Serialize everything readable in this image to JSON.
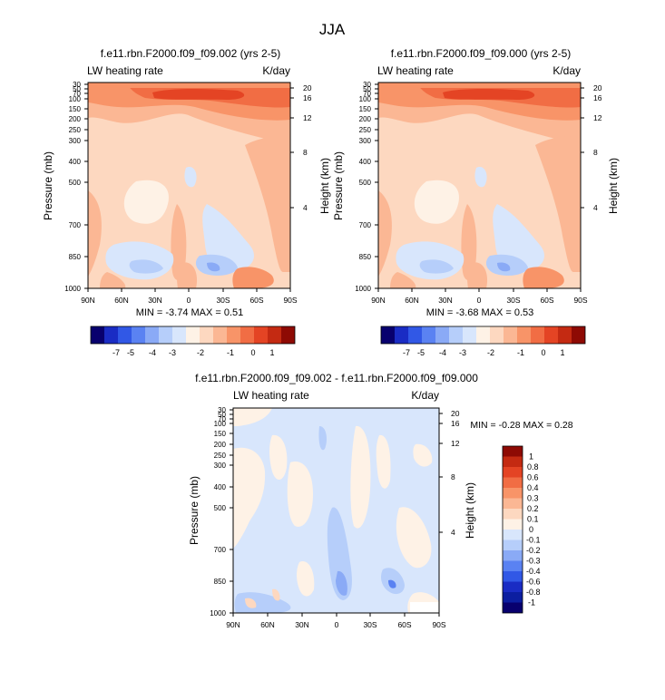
{
  "figure": {
    "title": "JJA"
  },
  "panels": [
    {
      "key": "p1",
      "title": "f.e11.rbn.F2000.f09_f09.002 (yrs 2-5)",
      "left_label": "LW heating rate",
      "right_label": "K/day",
      "stats": "MIN =  -3.74  MAX =   0.51",
      "ylabel": "Pressure (mb)",
      "ylabel_right": "Height (km)"
    },
    {
      "key": "p2",
      "title": "f.e11.rbn.F2000.f09_f09.000 (yrs 2-5)",
      "left_label": "LW heating rate",
      "right_label": "K/day",
      "stats": "MIN =  -3.68  MAX =   0.53",
      "ylabel": "Pressure (mb)",
      "ylabel_right": "Height (km)"
    },
    {
      "key": "p3",
      "title": "f.e11.rbn.F2000.f09_f09.002 - f.e11.rbn.F2000.f09_f09.000",
      "left_label": "LW heating rate",
      "right_label": "K/day",
      "stats": "MIN = -0.28  MAX =  0.28",
      "ylabel": "Pressure (mb)",
      "ylabel_right": "Height (km)"
    }
  ],
  "axes": {
    "x_ticks": [
      "90N",
      "60N",
      "30N",
      "0",
      "30S",
      "60S",
      "90S"
    ],
    "pressure_ticks": [
      "30",
      "50",
      "70",
      "100",
      "150",
      "200",
      "250",
      "300",
      "400",
      "500",
      "700",
      "850",
      "1000"
    ],
    "height_ticks": [
      "20",
      "16",
      "12",
      "8",
      "4"
    ]
  },
  "colorbars": {
    "main": {
      "labels": [
        "-7",
        "-5",
        "-4",
        "-3",
        "-2",
        "-1",
        "0",
        "1"
      ],
      "colors": [
        "#08006e",
        "#1a2cc4",
        "#3158e6",
        "#5a82f2",
        "#8aaaf6",
        "#b6cefa",
        "#d8e6fc",
        "#fef2e6",
        "#fdd8c0",
        "#fbb794",
        "#f89468",
        "#f16d44",
        "#e44424",
        "#c42a12",
        "#8e0a04"
      ]
    },
    "diff": {
      "labels": [
        "1",
        "0.8",
        "0.6",
        "0.4",
        "0.3",
        "0.2",
        "0.1",
        "0",
        "-0.1",
        "-0.2",
        "-0.3",
        "-0.4",
        "-0.6",
        "-0.8",
        "-1"
      ],
      "colors": [
        "#8e0a04",
        "#c42a12",
        "#e44424",
        "#f16d44",
        "#f89468",
        "#fbb794",
        "#fdd8c0",
        "#fef2e6",
        "#d8e6fc",
        "#b6cefa",
        "#8aaaf6",
        "#5a82f2",
        "#3158e6",
        "#1a2cc4",
        "#0c1ea0",
        "#08006e"
      ]
    }
  },
  "chart_data": [
    {
      "type": "heatmap",
      "title": "f.e11.rbn.F2000.f09_f09.002 (yrs 2-5)",
      "variable": "LW heating rate",
      "units": "K/day",
      "xlabel": "",
      "ylabel": "Pressure (mb)",
      "y2label": "Height (km)",
      "x_categories": [
        "90N",
        "60N",
        "30N",
        "0",
        "30S",
        "60S",
        "90S"
      ],
      "y_ticks_pressure": [
        30,
        50,
        70,
        100,
        150,
        200,
        250,
        300,
        400,
        500,
        700,
        850,
        1000
      ],
      "y_ticks_height": [
        20,
        16,
        12,
        8,
        4
      ],
      "min": -3.74,
      "max": 0.51
    },
    {
      "type": "heatmap",
      "title": "f.e11.rbn.F2000.f09_f09.000 (yrs 2-5)",
      "variable": "LW heating rate",
      "units": "K/day",
      "xlabel": "",
      "ylabel": "Pressure (mb)",
      "y2label": "Height (km)",
      "x_categories": [
        "90N",
        "60N",
        "30N",
        "0",
        "30S",
        "60S",
        "90S"
      ],
      "y_ticks_pressure": [
        30,
        50,
        70,
        100,
        150,
        200,
        250,
        300,
        400,
        500,
        700,
        850,
        1000
      ],
      "y_ticks_height": [
        20,
        16,
        12,
        8,
        4
      ],
      "min": -3.68,
      "max": 0.53
    },
    {
      "type": "heatmap",
      "title": "f.e11.rbn.F2000.f09_f09.002 - f.e11.rbn.F2000.f09_f09.000",
      "variable": "LW heating rate",
      "units": "K/day",
      "xlabel": "",
      "ylabel": "Pressure (mb)",
      "y2label": "Height (km)",
      "x_categories": [
        "90N",
        "60N",
        "30N",
        "0",
        "30S",
        "60S",
        "90S"
      ],
      "y_ticks_pressure": [
        30,
        50,
        70,
        100,
        150,
        200,
        250,
        300,
        400,
        500,
        700,
        850,
        1000
      ],
      "y_ticks_height": [
        20,
        16,
        12,
        8,
        4
      ],
      "min": -0.28,
      "max": 0.28
    }
  ]
}
